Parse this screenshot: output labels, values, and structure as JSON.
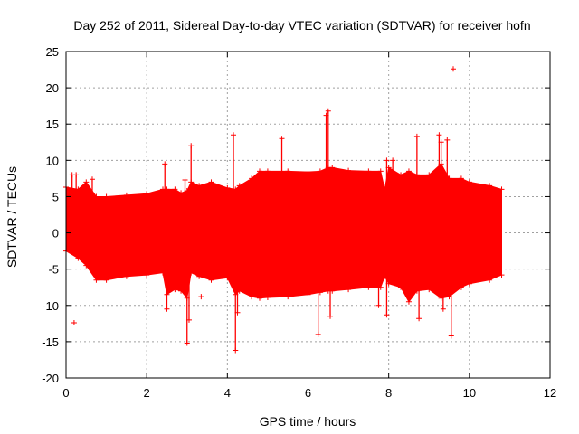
{
  "chart_data": {
    "type": "scatter",
    "title": "Day 252 of 2011, Sidereal Day-to-day VTEC variation (SDTVAR) for receiver hofn",
    "xlabel": "GPS time / hours",
    "ylabel": "SDTVAR / TECUs",
    "xlim": [
      0,
      12
    ],
    "ylim": [
      -20,
      25
    ],
    "grid": true,
    "xticks": [
      0,
      2,
      4,
      6,
      8,
      10,
      12
    ],
    "yticks": [
      -20,
      -15,
      -10,
      -5,
      0,
      5,
      10,
      15,
      20,
      25
    ],
    "marker": "+",
    "color": "#ff0000",
    "series": [
      {
        "name": "SDTVAR",
        "envelope": {
          "x": [
            0.0,
            0.3,
            0.5,
            0.75,
            1.0,
            1.5,
            2.0,
            2.4,
            2.5,
            2.7,
            2.85,
            3.0,
            3.1,
            3.3,
            3.6,
            4.0,
            4.2,
            4.3,
            4.6,
            4.8,
            5.0,
            5.5,
            6.0,
            6.3,
            6.5,
            6.6,
            7.0,
            7.5,
            7.8,
            7.9,
            8.0,
            8.3,
            8.5,
            8.7,
            9.0,
            9.3,
            9.5,
            9.8,
            10.0,
            10.5,
            10.8
          ],
          "upper": [
            6.3,
            6.0,
            7.0,
            5.0,
            5.0,
            5.2,
            5.4,
            6.0,
            6.0,
            6.0,
            5.5,
            5.8,
            7.0,
            6.5,
            7.0,
            6.2,
            6.0,
            6.5,
            7.5,
            8.5,
            8.5,
            8.5,
            8.4,
            8.5,
            9.0,
            9.0,
            8.6,
            8.5,
            8.5,
            6.0,
            9.0,
            8.0,
            8.5,
            8.0,
            8.0,
            9.5,
            7.5,
            7.5,
            7.0,
            6.5,
            6.0
          ],
          "lower": [
            -2.5,
            -3.5,
            -4.5,
            -6.5,
            -6.5,
            -6.0,
            -5.8,
            -5.5,
            -8.5,
            -7.8,
            -8.0,
            -9.0,
            -5.5,
            -6.0,
            -6.5,
            -6.2,
            -8.5,
            -8.0,
            -8.8,
            -9.0,
            -8.9,
            -8.8,
            -8.5,
            -8.2,
            -8.0,
            -8.0,
            -7.8,
            -7.5,
            -7.5,
            -6.0,
            -7.0,
            -7.5,
            -9.5,
            -8.0,
            -7.8,
            -9.0,
            -8.8,
            -7.5,
            -7.0,
            -6.5,
            -5.8
          ]
        },
        "spikes": [
          {
            "x": 0.15,
            "y": 8.0
          },
          {
            "x": 0.25,
            "y": 8.0
          },
          {
            "x": 0.65,
            "y": 7.4
          },
          {
            "x": 2.45,
            "y": 9.5
          },
          {
            "x": 2.5,
            "y": -10.5
          },
          {
            "x": 2.95,
            "y": 7.3
          },
          {
            "x": 3.0,
            "y": -15.2
          },
          {
            "x": 3.1,
            "y": 12.0
          },
          {
            "x": 3.05,
            "y": -12.0
          },
          {
            "x": 4.15,
            "y": 13.5
          },
          {
            "x": 4.2,
            "y": -16.2
          },
          {
            "x": 4.25,
            "y": -11.0
          },
          {
            "x": 5.35,
            "y": 13.0
          },
          {
            "x": 6.25,
            "y": -14.0
          },
          {
            "x": 6.45,
            "y": 16.2
          },
          {
            "x": 6.5,
            "y": 16.8
          },
          {
            "x": 6.55,
            "y": -11.5
          },
          {
            "x": 7.75,
            "y": -10.0
          },
          {
            "x": 7.95,
            "y": 10.0
          },
          {
            "x": 7.95,
            "y": -11.3
          },
          {
            "x": 8.1,
            "y": 10.0
          },
          {
            "x": 8.7,
            "y": 13.3
          },
          {
            "x": 8.75,
            "y": -11.8
          },
          {
            "x": 9.25,
            "y": 13.5
          },
          {
            "x": 9.3,
            "y": 12.5
          },
          {
            "x": 9.35,
            "y": -10.5
          },
          {
            "x": 9.45,
            "y": 12.8
          },
          {
            "x": 9.55,
            "y": -14.2
          }
        ],
        "outliers": [
          {
            "x": 0.2,
            "y": -12.4
          },
          {
            "x": 3.35,
            "y": -8.8
          },
          {
            "x": 9.6,
            "y": 22.6
          }
        ]
      }
    ]
  }
}
